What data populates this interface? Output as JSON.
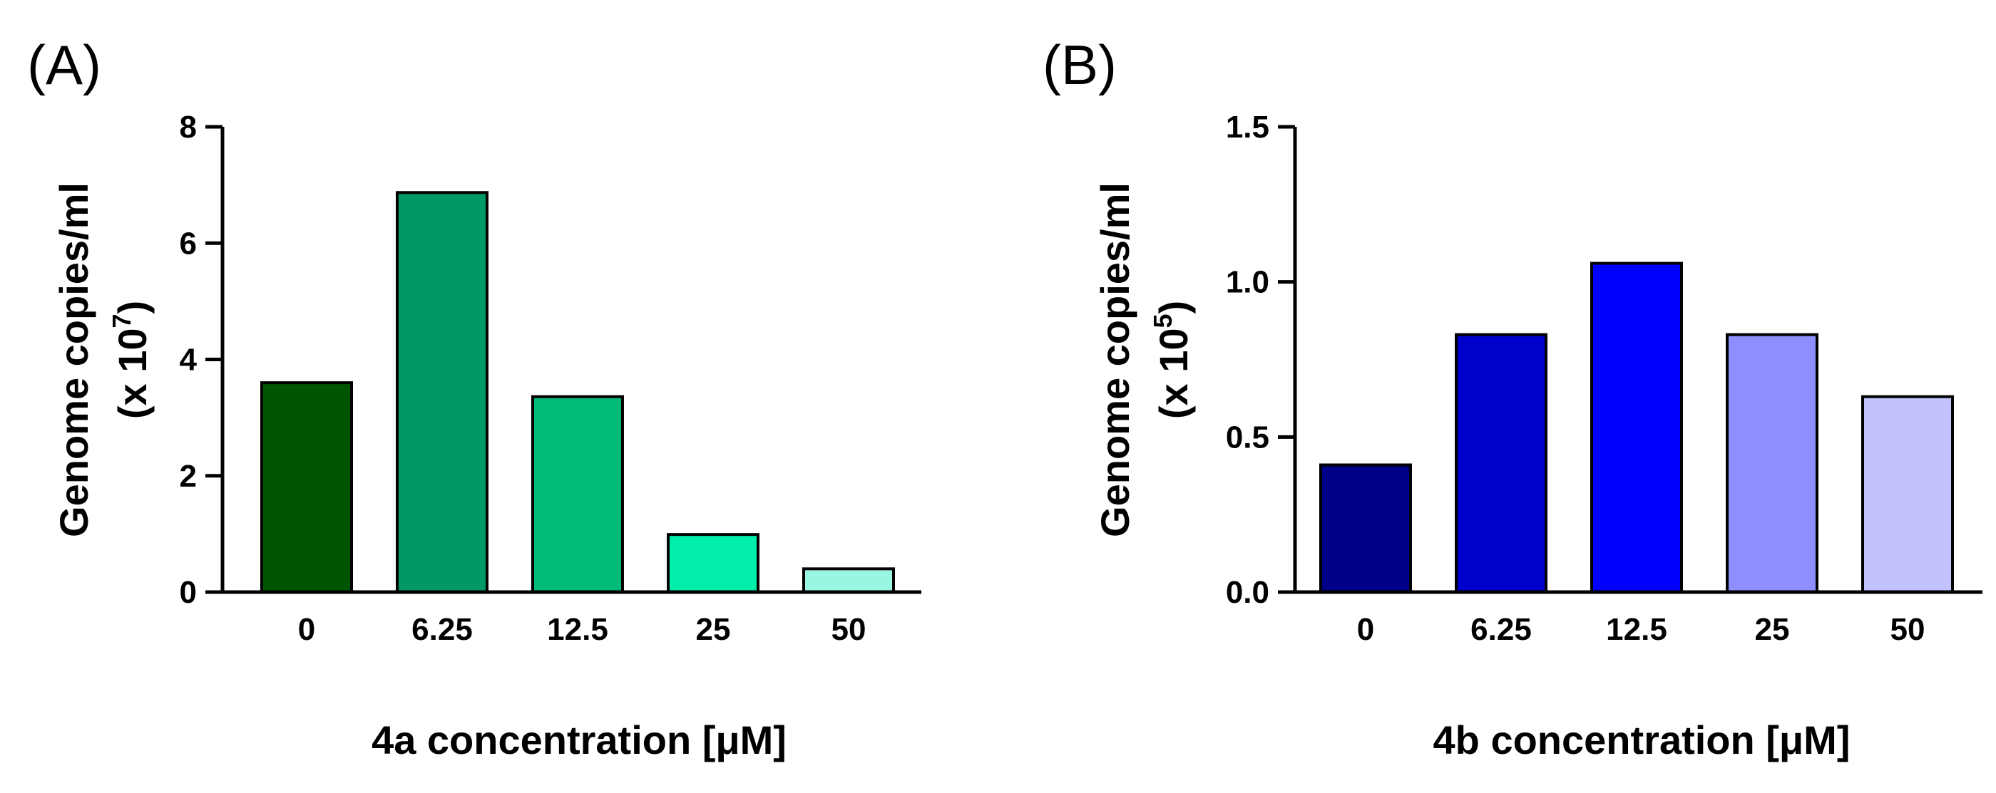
{
  "chart_data": [
    {
      "type": "bar",
      "panel_label": "(A)",
      "title": "",
      "categories": [
        "0",
        "6.25",
        "12.5",
        "25",
        "50"
      ],
      "values": [
        3.6,
        6.87,
        3.36,
        0.99,
        0.4
      ],
      "colors": [
        "#005500",
        "#009966",
        "#00bb77",
        "#00eeaa",
        "#99f7e1"
      ],
      "xlabel": "4a concentration [μM]",
      "ylabel_line1": "Genome copies/ml",
      "ylabel_line2_prefix": "(x 10",
      "ylabel_line2_exponent": "7",
      "ylabel_line2_suffix": ")",
      "ylim": [
        0,
        8
      ],
      "yticks": [
        0,
        2,
        4,
        6,
        8
      ],
      "ytick_labels": [
        "0",
        "2",
        "4",
        "6",
        "8"
      ],
      "grid": false
    },
    {
      "type": "bar",
      "panel_label": "(B)",
      "title": "",
      "categories": [
        "0",
        "6.25",
        "12.5",
        "25",
        "50"
      ],
      "values": [
        0.41,
        0.83,
        1.06,
        0.83,
        0.63
      ],
      "colors": [
        "#000088",
        "#0000cc",
        "#0000ff",
        "#8e8efe",
        "#c2c2fe"
      ],
      "xlabel": "4b concentration [μM]",
      "ylabel_line1": "Genome copies/ml",
      "ylabel_line2_prefix": "(x 10",
      "ylabel_line2_exponent": "5",
      "ylabel_line2_suffix": ")",
      "ylim": [
        0,
        1.5
      ],
      "yticks": [
        0,
        0.5,
        1.0,
        1.5
      ],
      "ytick_labels": [
        "0.0",
        "0.5",
        "1.0",
        "1.5"
      ],
      "grid": false
    }
  ]
}
